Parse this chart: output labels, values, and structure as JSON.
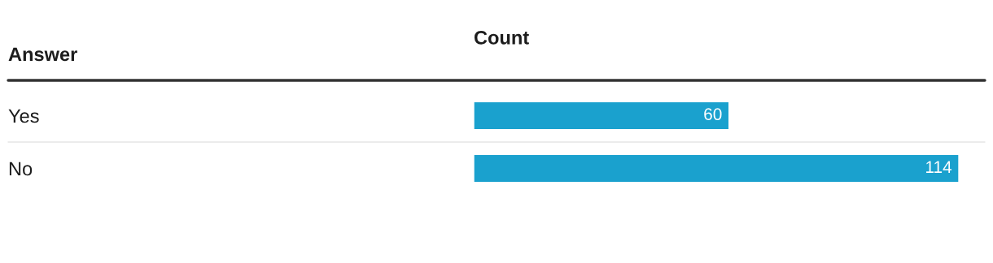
{
  "chart_data": {
    "type": "bar",
    "orientation": "horizontal",
    "ylabel": "Answer",
    "xlabel": "Count",
    "categories": [
      "Yes",
      "No"
    ],
    "values": [
      60,
      114
    ],
    "color": "#1aa1ce",
    "data_labels": true,
    "grid": false,
    "legend": false
  }
}
